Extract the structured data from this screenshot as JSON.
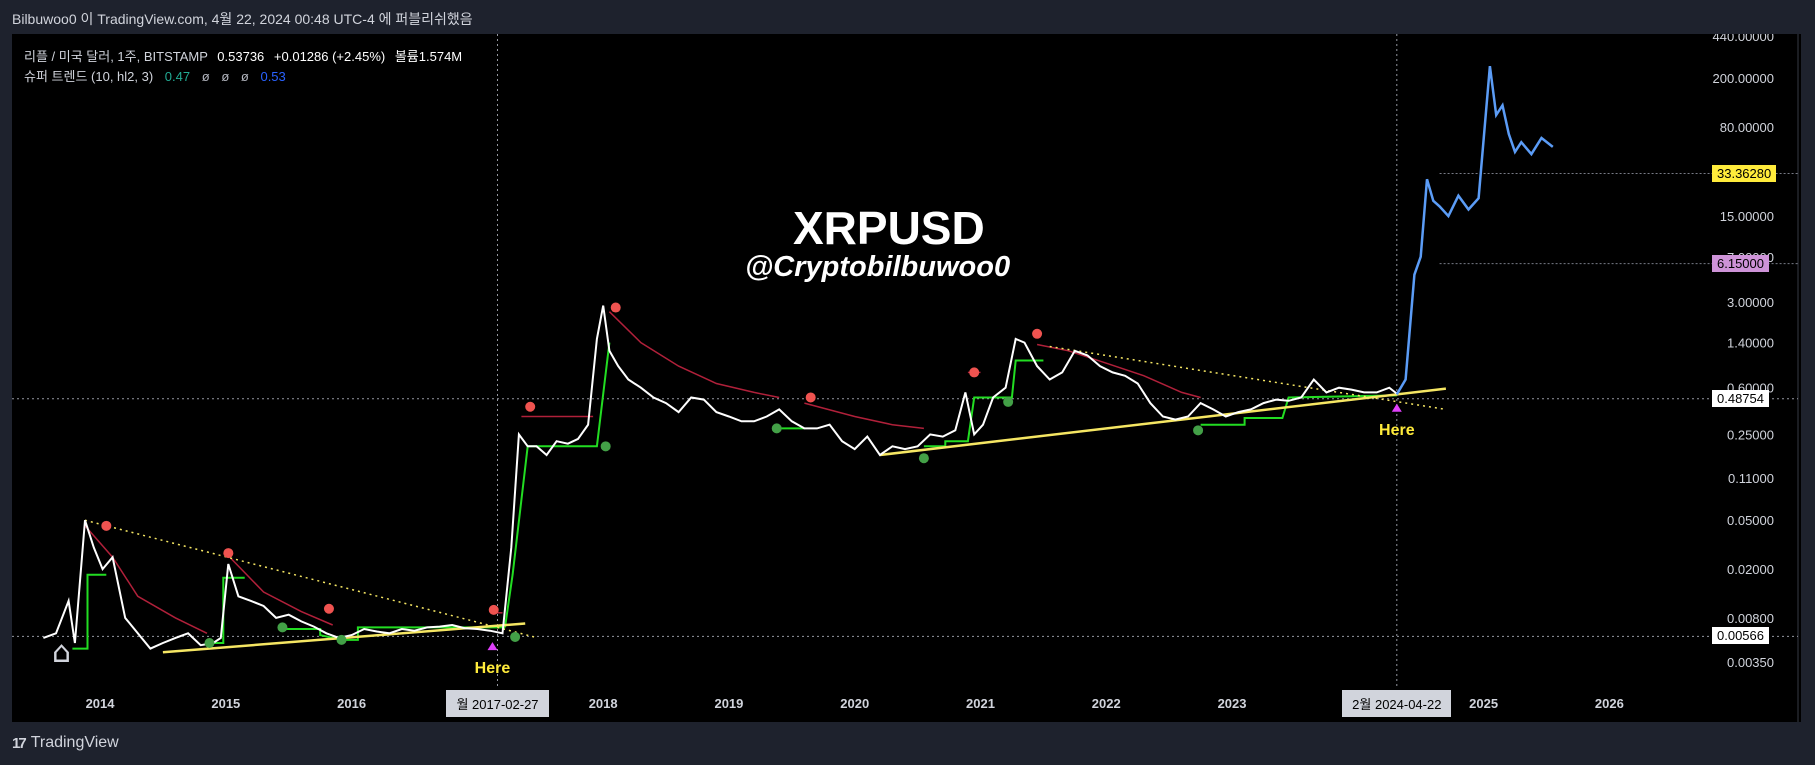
{
  "header": {
    "attribution": "Bilbuwoo0 이 TradingView.com, 4월 22, 2024 00:48 UTC-4 에 퍼블리쉬했음"
  },
  "legend": {
    "symbol": "리플 / 미국 달러, 1주, BITSTAMP",
    "price": "0.53736",
    "change": "+0.01286 (+2.45%)",
    "volume": "볼륨1.574M",
    "indicator": "슈퍼 트렌드 (10, hl2, 3)",
    "ind_val1": "0.47",
    "ind_na1": "ø",
    "ind_na2": "ø",
    "ind_na3": "ø",
    "ind_val2": "0.53"
  },
  "overlay": {
    "title": "XRPUSD",
    "handle": "@Cryptobilbuwoo0",
    "here_label": "Here"
  },
  "footer": {
    "brand": "TradingView"
  },
  "colors": {
    "price": "#ffffff",
    "projection": "#5b9cf6",
    "supertrend_up": "#22dd22",
    "supertrend_down": "#b0203a",
    "trendline": "#f5e663",
    "marker": "#e040fb",
    "grid": "#363a45"
  },
  "price_tags": [
    {
      "value": "33.36280",
      "bg": "#ffeb3b",
      "fg": "#000000",
      "y": 33.3628
    },
    {
      "value": "6.15000",
      "bg": "#ce93d8",
      "fg": "#000000",
      "y": 6.15
    },
    {
      "value": "0.48754",
      "bg": "#ffffff",
      "fg": "#000000",
      "y": 0.48754
    },
    {
      "value": "0.00566",
      "bg": "#ffffff",
      "fg": "#000000",
      "y": 0.00566
    }
  ],
  "date_tags": [
    {
      "label": "월 2017-02-27",
      "x": 2017.16
    },
    {
      "label": "2월 2024-04-22",
      "x": 2024.31
    }
  ],
  "chart_data": {
    "type": "line",
    "scale": "log",
    "x_ticks": [
      "2014",
      "2015",
      "2016",
      "2017",
      "2018",
      "2019",
      "2020",
      "2021",
      "2022",
      "2023",
      "2024",
      "2025",
      "2026"
    ],
    "y_ticks": [
      "440.00000",
      "200.00000",
      "80.00000",
      "15.00000",
      "7.00000",
      "3.00000",
      "1.40000",
      "0.60000",
      "0.25000",
      "0.11000",
      "0.05000",
      "0.02000",
      "0.00800",
      "0.00350"
    ],
    "y_tick_values": [
      440,
      200,
      80,
      15,
      7,
      3,
      1.4,
      0.6,
      0.25,
      0.11,
      0.05,
      0.02,
      0.008,
      0.0035
    ],
    "xlim": [
      2013.3,
      2026.8
    ],
    "series": [
      {
        "x": [
          2013.55,
          2013.65,
          2013.75,
          2013.8,
          2013.88,
          2013.95,
          2014.02,
          2014.1,
          2014.2,
          2014.3,
          2014.4,
          2014.5,
          2014.6,
          2014.7,
          2014.8,
          2014.9,
          2014.96,
          2015.02,
          2015.1,
          2015.2,
          2015.3,
          2015.4,
          2015.5,
          2015.6,
          2015.7,
          2015.8,
          2015.9,
          2016.0,
          2016.1,
          2016.2,
          2016.3,
          2016.4,
          2016.5,
          2016.6,
          2016.7,
          2016.8,
          2016.9,
          2017.0,
          2017.1,
          2017.2,
          2017.27,
          2017.33,
          2017.4,
          2017.47,
          2017.55,
          2017.63,
          2017.72,
          2017.8,
          2017.88,
          2017.95,
          2018.0,
          2018.05,
          2018.12,
          2018.2,
          2018.3,
          2018.4,
          2018.5,
          2018.6,
          2018.7,
          2018.8,
          2018.9,
          2019.0,
          2019.1,
          2019.2,
          2019.3,
          2019.4,
          2019.5,
          2019.6,
          2019.7,
          2019.8,
          2019.9,
          2020.0,
          2020.1,
          2020.2,
          2020.3,
          2020.4,
          2020.5,
          2020.6,
          2020.7,
          2020.8,
          2020.88,
          2020.95,
          2021.02,
          2021.1,
          2021.2,
          2021.28,
          2021.35,
          2021.45,
          2021.55,
          2021.65,
          2021.75,
          2021.85,
          2021.95,
          2022.05,
          2022.15,
          2022.25,
          2022.35,
          2022.45,
          2022.55,
          2022.65,
          2022.75,
          2022.85,
          2022.95,
          2023.05,
          2023.15,
          2023.25,
          2023.35,
          2023.45,
          2023.55,
          2023.65,
          2023.75,
          2023.85,
          2023.95,
          2024.05,
          2024.15,
          2024.25,
          2024.31
        ],
        "y": [
          0.0055,
          0.006,
          0.011,
          0.005,
          0.05,
          0.03,
          0.02,
          0.025,
          0.008,
          0.006,
          0.0045,
          0.005,
          0.0055,
          0.006,
          0.0048,
          0.005,
          0.0055,
          0.022,
          0.012,
          0.011,
          0.01,
          0.008,
          0.0085,
          0.0075,
          0.0068,
          0.006,
          0.0055,
          0.0058,
          0.0065,
          0.0062,
          0.006,
          0.0065,
          0.0063,
          0.0067,
          0.0068,
          0.007,
          0.0066,
          0.0065,
          0.0063,
          0.006,
          0.03,
          0.25,
          0.2,
          0.2,
          0.17,
          0.22,
          0.21,
          0.23,
          0.3,
          1.5,
          2.8,
          1.2,
          0.9,
          0.7,
          0.6,
          0.5,
          0.45,
          0.38,
          0.5,
          0.48,
          0.38,
          0.35,
          0.32,
          0.32,
          0.35,
          0.4,
          0.32,
          0.28,
          0.28,
          0.3,
          0.22,
          0.19,
          0.24,
          0.17,
          0.2,
          0.19,
          0.2,
          0.25,
          0.24,
          0.27,
          0.55,
          0.25,
          0.3,
          0.5,
          0.6,
          1.5,
          1.4,
          0.9,
          0.7,
          0.8,
          1.2,
          1.1,
          0.9,
          0.8,
          0.75,
          0.65,
          0.45,
          0.35,
          0.33,
          0.35,
          0.45,
          0.4,
          0.35,
          0.38,
          0.4,
          0.45,
          0.48,
          0.47,
          0.5,
          0.7,
          0.55,
          0.6,
          0.58,
          0.55,
          0.55,
          0.6,
          0.53737
        ]
      },
      {
        "x": [
          2024.31,
          2024.38,
          2024.45,
          2024.5,
          2024.55,
          2024.6,
          2024.65,
          2024.72,
          2024.8,
          2024.88,
          2024.96,
          2025.05,
          2025.1,
          2025.15,
          2025.2,
          2025.25,
          2025.3,
          2025.38,
          2025.46,
          2025.55
        ],
        "y": [
          0.53,
          0.7,
          5.0,
          7.0,
          30.0,
          20.0,
          18.0,
          15.0,
          22.0,
          17.0,
          21.0,
          250.0,
          100.0,
          120.0,
          70.0,
          50.0,
          60.0,
          48.0,
          65.0,
          55.0
        ]
      }
    ],
    "supertrend_up": [
      {
        "x": [
          2013.78,
          2013.9,
          2013.9,
          2014.05
        ],
        "y": [
          0.0045,
          0.0045,
          0.018,
          0.018
        ]
      },
      {
        "x": [
          2014.9,
          2014.98,
          2014.98,
          2015.15
        ],
        "y": [
          0.005,
          0.005,
          0.017,
          0.017
        ]
      },
      {
        "x": [
          2015.45,
          2015.75,
          2015.75,
          2015.92,
          2016.05,
          2016.05,
          2017.22
        ],
        "y": [
          0.0065,
          0.0065,
          0.0058,
          0.0053,
          0.0053,
          0.0067,
          0.0067
        ]
      },
      {
        "x": [
          2017.22,
          2017.28,
          2017.28,
          2017.4,
          2017.4,
          2017.95,
          2018.05
        ],
        "y": [
          0.0067,
          0.018,
          0.018,
          0.2,
          0.2,
          0.2,
          1.4
        ]
      },
      {
        "x": [
          2019.4,
          2019.6
        ],
        "y": [
          0.28,
          0.28
        ]
      },
      {
        "x": [
          2020.55,
          2020.72,
          2020.72,
          2020.9,
          2020.95,
          2021.25,
          2021.28,
          2021.5
        ],
        "y": [
          0.2,
          0.2,
          0.22,
          0.22,
          0.5,
          0.5,
          1.0,
          1.0
        ]
      },
      {
        "x": [
          2022.75,
          2023.1,
          2023.1,
          2023.4,
          2023.45,
          2024.31
        ],
        "y": [
          0.3,
          0.3,
          0.34,
          0.34,
          0.5,
          0.52
        ]
      }
    ],
    "supertrend_down": [
      {
        "x": [
          2013.88,
          2014.1,
          2014.3,
          2014.6,
          2014.85
        ],
        "y": [
          0.045,
          0.025,
          0.012,
          0.008,
          0.006
        ]
      },
      {
        "x": [
          2015.0,
          2015.3,
          2015.6,
          2015.85
        ],
        "y": [
          0.027,
          0.013,
          0.009,
          0.007
        ]
      },
      {
        "x": [
          2017.1,
          2017.2
        ],
        "y": [
          0.0088,
          0.0088
        ]
      },
      {
        "x": [
          2017.35,
          2017.7,
          2017.92
        ],
        "y": [
          0.35,
          0.35,
          0.35
        ]
      },
      {
        "x": [
          2018.05,
          2018.3,
          2018.6,
          2018.9,
          2019.2,
          2019.4
        ],
        "y": [
          2.5,
          1.4,
          0.9,
          0.65,
          0.55,
          0.5
        ]
      },
      {
        "x": [
          2019.6,
          2020.0,
          2020.3,
          2020.55
        ],
        "y": [
          0.45,
          0.35,
          0.3,
          0.28
        ]
      },
      {
        "x": [
          2020.9,
          2021.0
        ],
        "y": [
          0.8,
          0.8
        ]
      },
      {
        "x": [
          2021.45,
          2021.7,
          2022.0,
          2022.3,
          2022.6,
          2022.75
        ],
        "y": [
          1.35,
          1.2,
          0.95,
          0.75,
          0.55,
          0.5
        ]
      }
    ],
    "green_dots": [
      [
        2014.87,
        0.005
      ],
      [
        2015.45,
        0.0067
      ],
      [
        2015.92,
        0.0053
      ],
      [
        2017.3,
        0.0056
      ],
      [
        2018.02,
        0.2
      ],
      [
        2019.38,
        0.28
      ],
      [
        2020.55,
        0.16
      ],
      [
        2021.22,
        0.46
      ],
      [
        2022.73,
        0.27
      ]
    ],
    "red_dots": [
      [
        2014.05,
        0.045
      ],
      [
        2015.02,
        0.027
      ],
      [
        2015.82,
        0.0095
      ],
      [
        2017.13,
        0.0093
      ],
      [
        2017.42,
        0.42
      ],
      [
        2018.1,
        2.7
      ],
      [
        2019.65,
        0.5
      ],
      [
        2020.95,
        0.8
      ],
      [
        2021.45,
        1.65
      ]
    ],
    "trendline_lower": {
      "x": [
        2014.5,
        2017.38
      ],
      "y": [
        0.0042,
        0.0072
      ]
    },
    "trendline_upper": {
      "x": [
        2020.2,
        2024.7
      ],
      "y": [
        0.17,
        0.59
      ]
    },
    "dotted_lower": {
      "x": [
        2013.88,
        2017.48
      ],
      "y": [
        0.05,
        0.0055
      ]
    },
    "dotted_upper": {
      "x": [
        2021.55,
        2024.7
      ],
      "y": [
        1.3,
        0.4
      ]
    },
    "markers": [
      {
        "x": 2017.12,
        "y": 0.0048
      },
      {
        "x": 2024.31,
        "y": 0.42
      }
    ]
  }
}
